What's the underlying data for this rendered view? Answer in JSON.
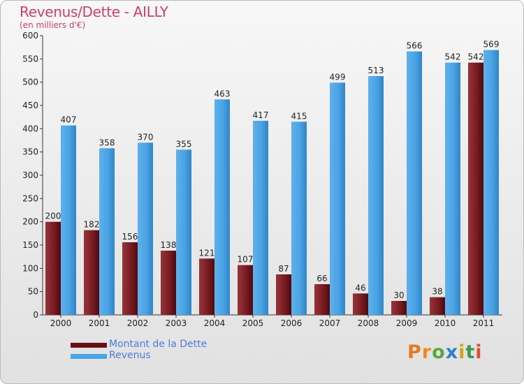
{
  "chart_data": {
    "type": "bar",
    "title": "Revenus/Dette - AILLY",
    "subtitle": "(en milliers d'€)",
    "categories": [
      "2000",
      "2001",
      "2002",
      "2003",
      "2004",
      "2005",
      "2006",
      "2007",
      "2008",
      "2009",
      "2010",
      "2011"
    ],
    "series": [
      {
        "name": "Montant de la Dette",
        "color": "#7f1f24",
        "values": [
          200,
          182,
          156,
          138,
          121,
          107,
          87,
          66,
          46,
          30,
          38,
          542
        ]
      },
      {
        "name": "Revenus",
        "color": "#4aa3e4",
        "values": [
          407,
          358,
          370,
          355,
          463,
          417,
          415,
          499,
          513,
          566,
          542,
          569
        ]
      }
    ],
    "ylim": [
      0,
      600
    ],
    "yticks": [
      0,
      50,
      100,
      150,
      200,
      250,
      300,
      350,
      400,
      450,
      500,
      550,
      600
    ],
    "grid": false,
    "legend_position": "bottom-left"
  },
  "branding": {
    "logo_text": "Proxiti"
  }
}
